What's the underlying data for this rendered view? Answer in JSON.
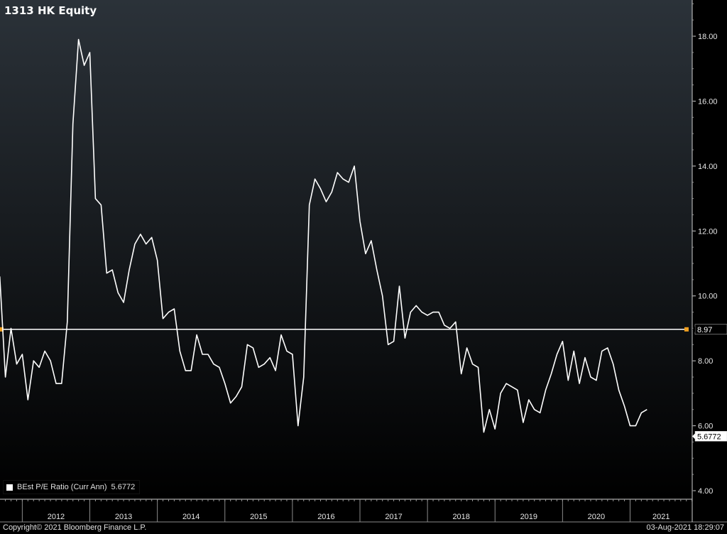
{
  "title": "1313 HK Equity",
  "legend": {
    "label": "BEst P/E Ratio (Curr Ann)",
    "value": "5.6772"
  },
  "footer": {
    "copyright": "Copyright© 2021 Bloomberg Finance L.P.",
    "timestamp": "03-Aug-2021 18:29:07"
  },
  "colors": {
    "background_top": "#2b3239",
    "background_bottom": "#000000",
    "line": "#ffffff",
    "marker": "#f0a020",
    "grid": "#3a3f44"
  },
  "chart_data": {
    "type": "line",
    "title": "1313 HK Equity",
    "xlabel": "",
    "ylabel": "",
    "ylim": [
      4,
      19
    ],
    "y_ticks": [
      "4.00",
      "6.00",
      "8.00",
      "10.00",
      "12.00",
      "14.00",
      "16.00",
      "18.00"
    ],
    "x_tick_labels": [
      "2012",
      "2013",
      "2014",
      "2015",
      "2016",
      "2017",
      "2018",
      "2019",
      "2020",
      "2021"
    ],
    "xlim": [
      2011.67,
      2021.92
    ],
    "grid": false,
    "legend_position": "bottom-left",
    "reference_line": {
      "label": "8.97",
      "value": 8.97
    },
    "last_value_label": "5.6772",
    "series": [
      {
        "name": "BEst P/E Ratio (Curr Ann)",
        "x": [
          2011.667,
          2011.75,
          2011.833,
          2011.917,
          2012.0,
          2012.083,
          2012.167,
          2012.25,
          2012.333,
          2012.417,
          2012.5,
          2012.583,
          2012.667,
          2012.75,
          2012.833,
          2012.917,
          2013.0,
          2013.083,
          2013.167,
          2013.25,
          2013.333,
          2013.417,
          2013.5,
          2013.583,
          2013.667,
          2013.75,
          2013.833,
          2013.917,
          2014.0,
          2014.083,
          2014.167,
          2014.25,
          2014.333,
          2014.417,
          2014.5,
          2014.583,
          2014.667,
          2014.75,
          2014.833,
          2014.917,
          2015.0,
          2015.083,
          2015.167,
          2015.25,
          2015.333,
          2015.417,
          2015.5,
          2015.583,
          2015.667,
          2015.75,
          2015.833,
          2015.917,
          2016.0,
          2016.083,
          2016.167,
          2016.25,
          2016.333,
          2016.417,
          2016.5,
          2016.583,
          2016.667,
          2016.75,
          2016.833,
          2016.917,
          2017.0,
          2017.083,
          2017.167,
          2017.25,
          2017.333,
          2017.417,
          2017.5,
          2017.583,
          2017.667,
          2017.75,
          2017.833,
          2017.917,
          2018.0,
          2018.083,
          2018.167,
          2018.25,
          2018.333,
          2018.417,
          2018.5,
          2018.583,
          2018.667,
          2018.75,
          2018.833,
          2018.917,
          2019.0,
          2019.083,
          2019.167,
          2019.25,
          2019.333,
          2019.417,
          2019.5,
          2019.583,
          2019.667,
          2019.75,
          2019.833,
          2019.917,
          2020.0,
          2020.083,
          2020.167,
          2020.25,
          2020.333,
          2020.417,
          2020.5,
          2020.583,
          2020.667,
          2020.75,
          2020.833,
          2020.917,
          2021.0,
          2021.083,
          2021.167,
          2021.25
        ],
        "values": [
          10.6,
          7.5,
          9.0,
          7.9,
          8.2,
          6.8,
          8.0,
          7.8,
          8.3,
          8.0,
          7.3,
          7.3,
          9.2,
          15.3,
          17.9,
          17.1,
          17.5,
          13.0,
          12.8,
          10.7,
          10.8,
          10.1,
          9.8,
          10.8,
          11.6,
          11.9,
          11.6,
          11.8,
          11.1,
          9.3,
          9.5,
          9.6,
          8.3,
          7.7,
          7.7,
          8.8,
          8.2,
          8.2,
          7.9,
          7.8,
          7.3,
          6.7,
          6.9,
          7.2,
          8.5,
          8.4,
          7.8,
          7.9,
          8.1,
          7.7,
          8.8,
          8.3,
          8.2,
          6.0,
          7.5,
          12.8,
          13.6,
          13.3,
          12.9,
          13.2,
          13.8,
          13.6,
          13.5,
          14.0,
          12.3,
          11.3,
          11.7,
          10.8,
          10.0,
          8.5,
          8.6,
          10.3,
          8.7,
          9.5,
          9.7,
          9.5,
          9.4,
          9.5,
          9.5,
          9.1,
          9.0,
          9.2,
          7.6,
          8.4,
          7.9,
          7.8,
          5.8,
          6.5,
          5.9,
          7.0,
          7.3,
          7.2,
          7.1,
          6.1,
          6.8,
          6.5,
          6.4,
          7.1,
          7.6,
          8.2,
          8.6,
          7.4,
          8.3,
          7.3,
          8.1,
          7.5,
          7.4,
          8.3,
          8.4,
          7.9,
          7.1,
          6.6,
          6.0,
          6.0,
          6.4,
          6.5
        ]
      }
    ]
  }
}
